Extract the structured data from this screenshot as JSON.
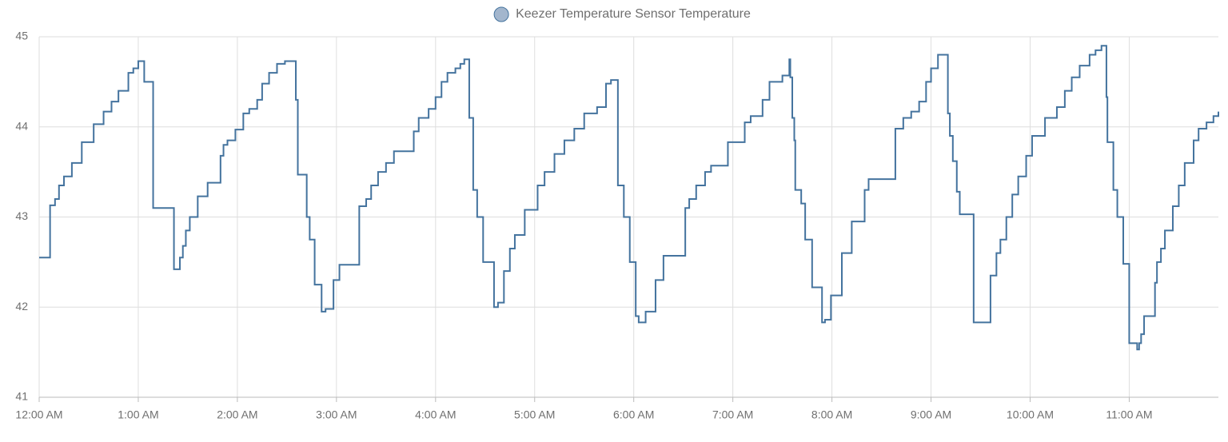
{
  "chart_data": {
    "type": "line",
    "step": true,
    "series": [
      {
        "name": "Keezer Temperature Sensor Temperature",
        "color": "#44739e",
        "legend_fill": "#a3b6cd",
        "x": [
          0,
          0.11,
          0.16,
          0.2,
          0.25,
          0.33,
          0.43,
          0.55,
          0.65,
          0.73,
          0.8,
          0.9,
          0.95,
          1.0,
          1.06,
          1.15,
          1.36,
          1.42,
          1.45,
          1.48,
          1.52,
          1.6,
          1.7,
          1.83,
          1.86,
          1.9,
          1.98,
          2.06,
          2.12,
          2.2,
          2.25,
          2.32,
          2.4,
          2.48,
          2.59,
          2.61,
          2.7,
          2.73,
          2.78,
          2.85,
          2.89,
          2.97,
          3.03,
          3.23,
          3.3,
          3.35,
          3.42,
          3.5,
          3.58,
          3.78,
          3.83,
          3.93,
          4.0,
          4.06,
          4.12,
          4.2,
          4.25,
          4.29,
          4.34,
          4.38,
          4.42,
          4.48,
          4.59,
          4.63,
          4.69,
          4.75,
          4.8,
          4.9,
          5.03,
          5.1,
          5.2,
          5.3,
          5.4,
          5.5,
          5.63,
          5.72,
          5.77,
          5.84,
          5.9,
          5.96,
          6.02,
          6.05,
          6.12,
          6.22,
          6.3,
          6.52,
          6.56,
          6.63,
          6.72,
          6.78,
          6.95,
          7.12,
          7.18,
          7.3,
          7.37,
          7.5,
          7.57,
          7.58,
          7.6,
          7.62,
          7.63,
          7.69,
          7.73,
          7.8,
          7.9,
          7.93,
          7.99,
          8.1,
          8.2,
          8.33,
          8.37,
          8.64,
          8.72,
          8.8,
          8.88,
          8.95,
          9.0,
          9.07,
          9.17,
          9.19,
          9.22,
          9.26,
          9.29,
          9.43,
          9.6,
          9.66,
          9.7,
          9.76,
          9.82,
          9.88,
          9.96,
          10.02,
          10.15,
          10.27,
          10.35,
          10.42,
          10.5,
          10.6,
          10.66,
          10.72,
          10.77,
          10.78,
          10.84,
          10.88,
          10.94,
          11.0,
          11.08,
          11.1,
          11.12,
          11.15,
          11.26,
          11.28,
          11.32,
          11.36,
          11.44,
          11.5,
          11.56,
          11.65,
          11.7,
          11.78,
          11.85,
          11.9
        ],
        "values": [
          42.55,
          43.13,
          43.2,
          43.35,
          43.45,
          43.6,
          43.83,
          44.03,
          44.17,
          44.28,
          44.4,
          44.6,
          44.65,
          44.73,
          44.5,
          43.1,
          42.42,
          42.55,
          42.68,
          42.85,
          43.0,
          43.23,
          43.38,
          43.68,
          43.8,
          43.85,
          43.97,
          44.15,
          44.2,
          44.3,
          44.48,
          44.6,
          44.7,
          44.73,
          44.3,
          43.47,
          43.0,
          42.75,
          42.25,
          41.95,
          41.98,
          42.3,
          42.47,
          43.12,
          43.2,
          43.35,
          43.5,
          43.6,
          43.73,
          43.95,
          44.1,
          44.2,
          44.33,
          44.5,
          44.6,
          44.65,
          44.7,
          44.75,
          44.1,
          43.3,
          43.0,
          42.5,
          42.0,
          42.05,
          42.4,
          42.65,
          42.8,
          43.08,
          43.35,
          43.5,
          43.7,
          43.85,
          43.98,
          44.15,
          44.22,
          44.48,
          44.52,
          43.35,
          43.0,
          42.5,
          41.9,
          41.83,
          41.95,
          42.3,
          42.57,
          43.1,
          43.2,
          43.35,
          43.5,
          43.57,
          43.83,
          44.05,
          44.12,
          44.3,
          44.5,
          44.57,
          44.75,
          44.55,
          44.1,
          43.85,
          43.3,
          43.15,
          42.75,
          42.22,
          41.83,
          41.86,
          42.13,
          42.6,
          42.95,
          43.3,
          43.42,
          43.98,
          44.1,
          44.17,
          44.28,
          44.5,
          44.65,
          44.8,
          44.15,
          43.9,
          43.62,
          43.28,
          43.03,
          41.83,
          42.35,
          42.6,
          42.75,
          43.0,
          43.25,
          43.45,
          43.68,
          43.9,
          44.1,
          44.22,
          44.4,
          44.55,
          44.68,
          44.8,
          44.85,
          44.9,
          44.33,
          43.83,
          43.3,
          43.0,
          42.48,
          41.6,
          41.53,
          41.6,
          41.7,
          41.9,
          42.27,
          42.5,
          42.65,
          42.85,
          43.12,
          43.35,
          43.6,
          43.85,
          43.98,
          44.05,
          44.12,
          44.17
        ]
      }
    ],
    "xlim": [
      0,
      11.9
    ],
    "xticks": [
      {
        "value": 0,
        "label": "12:00 AM"
      },
      {
        "value": 1,
        "label": "1:00 AM"
      },
      {
        "value": 2,
        "label": "2:00 AM"
      },
      {
        "value": 3,
        "label": "3:00 AM"
      },
      {
        "value": 4,
        "label": "4:00 AM"
      },
      {
        "value": 5,
        "label": "5:00 AM"
      },
      {
        "value": 6,
        "label": "6:00 AM"
      },
      {
        "value": 7,
        "label": "7:00 AM"
      },
      {
        "value": 8,
        "label": "8:00 AM"
      },
      {
        "value": 9,
        "label": "9:00 AM"
      },
      {
        "value": 10,
        "label": "10:00 AM"
      },
      {
        "value": 11,
        "label": "11:00 AM"
      }
    ],
    "ylim": [
      41,
      45
    ],
    "yticks": [
      41,
      42,
      43,
      44,
      45
    ],
    "grid": true,
    "legend": "top"
  }
}
